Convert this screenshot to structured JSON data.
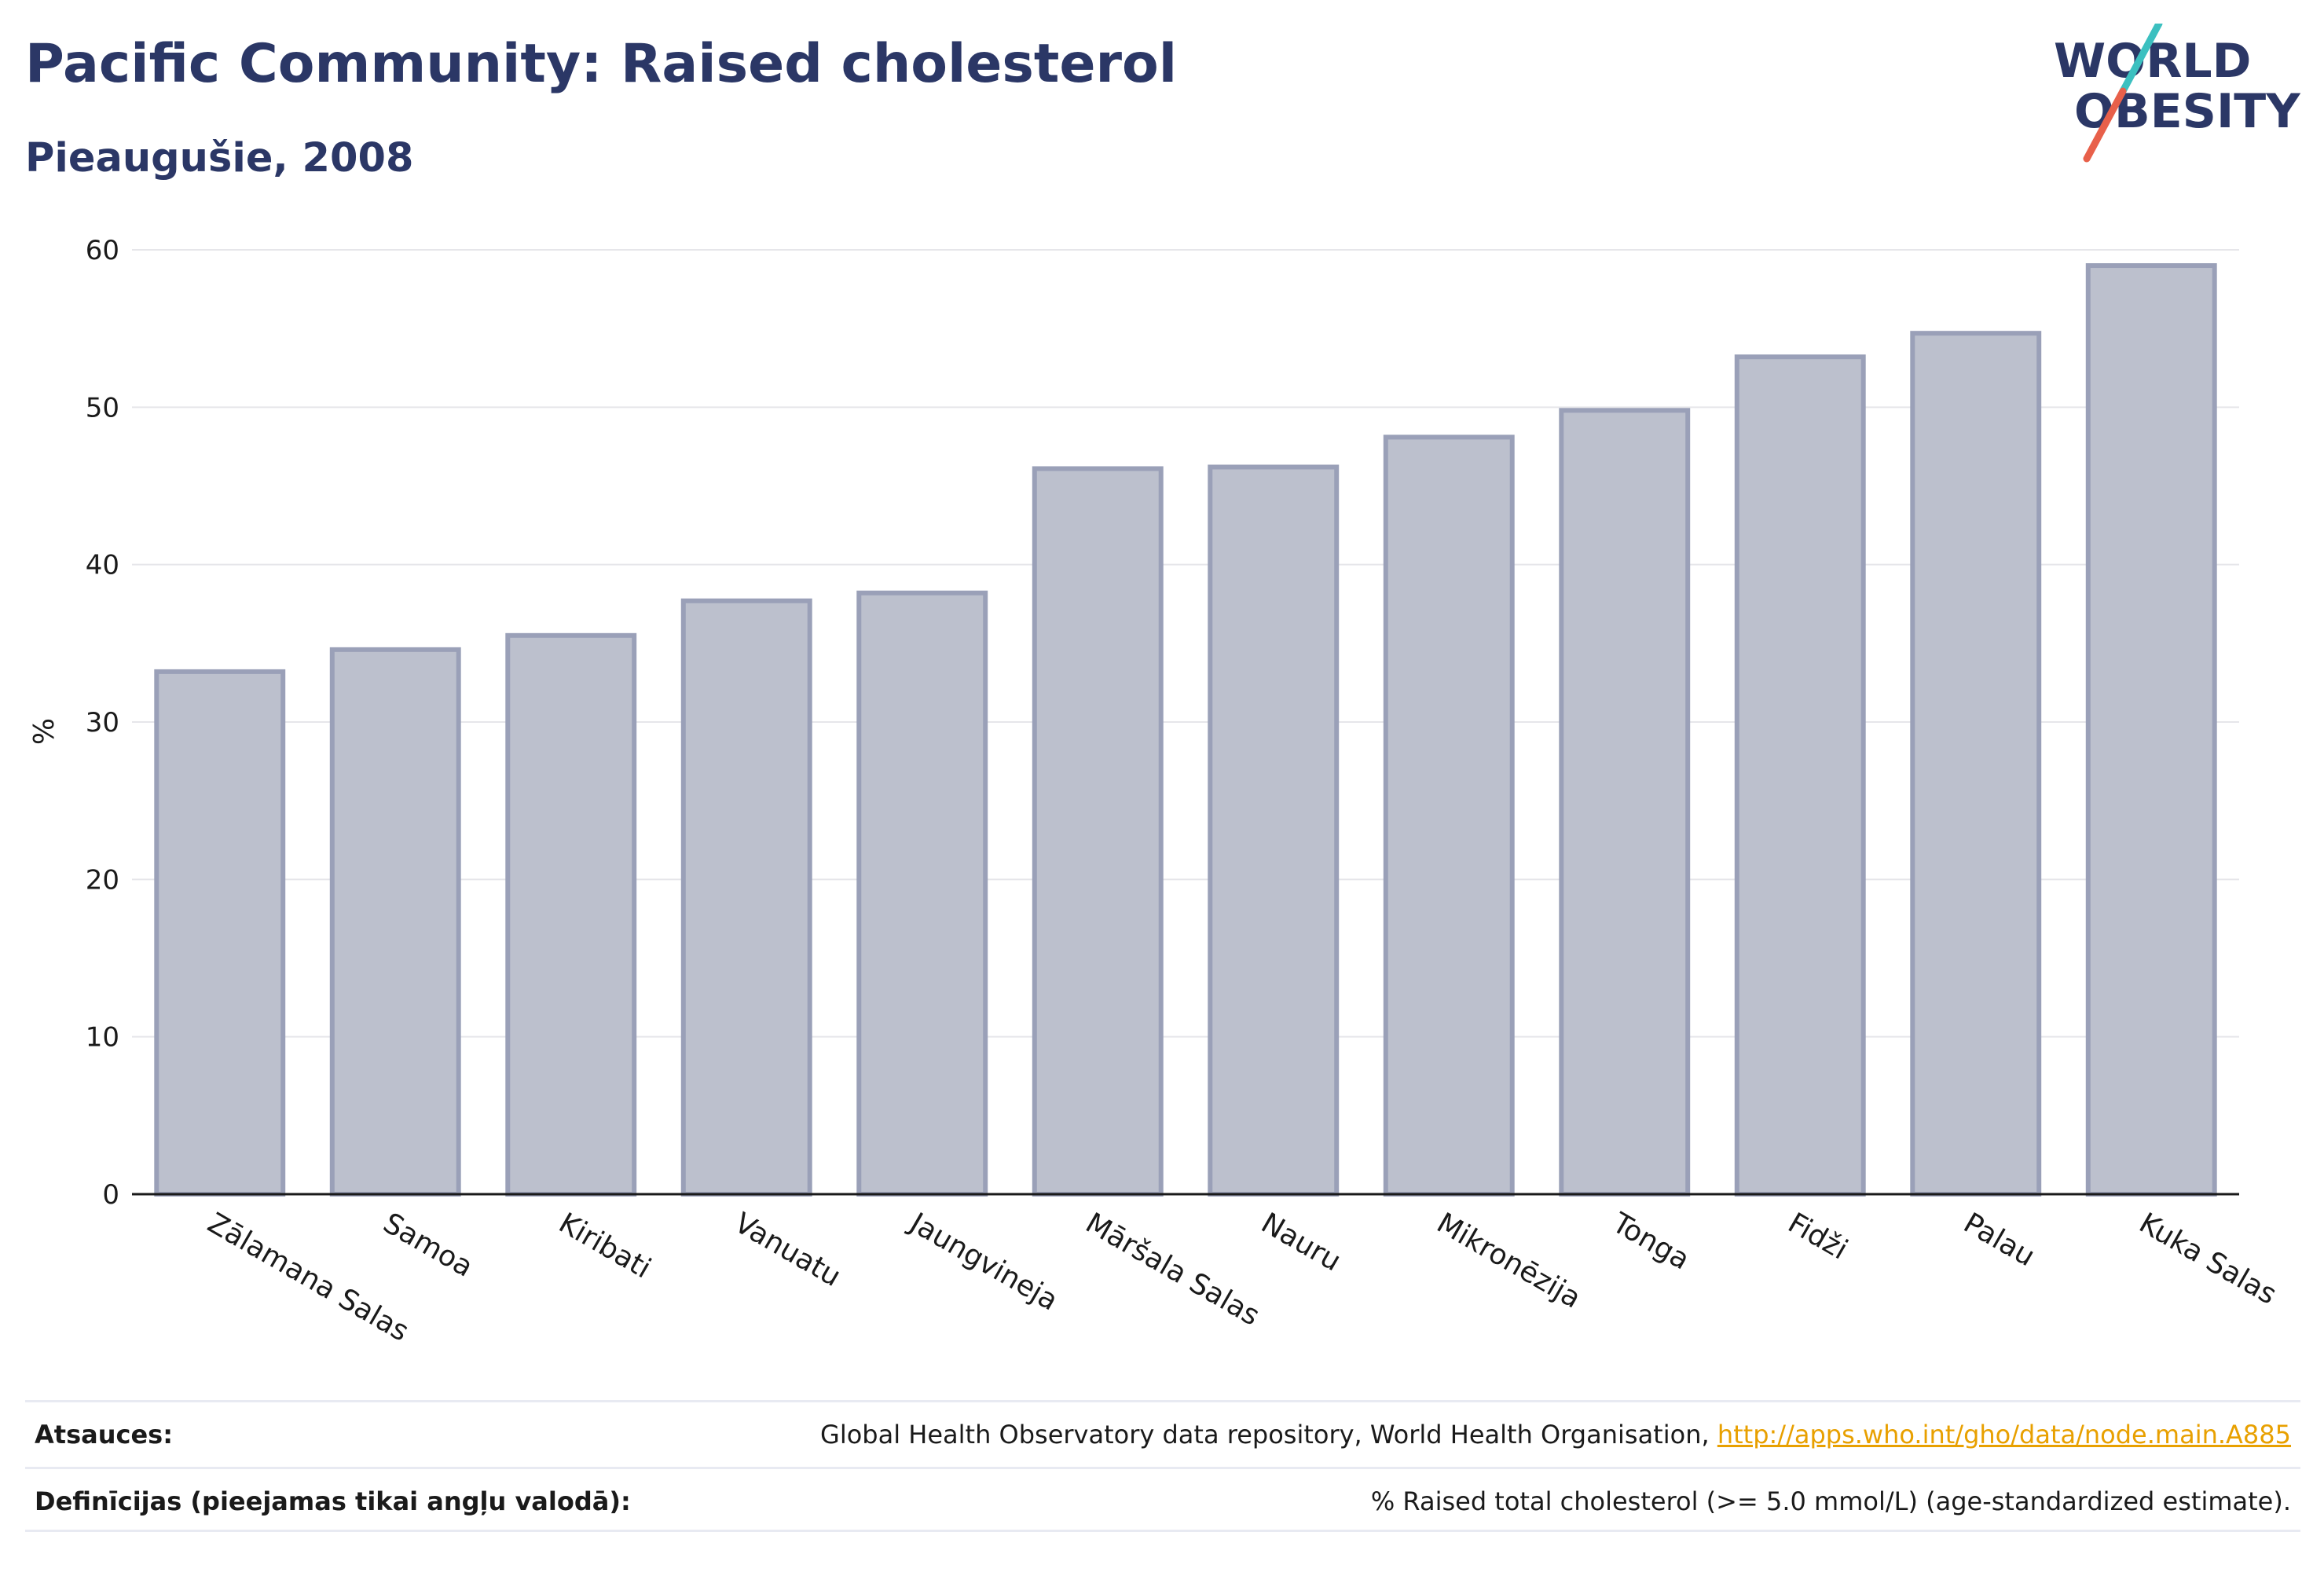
{
  "header": {
    "title": "Pacific Community: Raised cholesterol",
    "subtitle": "Pieaugušie, 2008"
  },
  "logo": {
    "line1": "WORLD",
    "line2": "OBESITY",
    "text_color": "#2b3766",
    "accent_teal": "#3cc0c0",
    "accent_red": "#e8604a"
  },
  "chart_data": {
    "type": "bar",
    "categories": [
      "Zālamana Salas",
      "Samoa",
      "Kiribati",
      "Vanuatu",
      "Jaungvineja",
      "Māršala Salas",
      "Nauru",
      "Mikronēzija",
      "Tonga",
      "Fidži",
      "Palau",
      "Kuka Salas"
    ],
    "values": [
      33.2,
      34.6,
      35.5,
      37.7,
      38.2,
      46.1,
      46.2,
      48.1,
      49.8,
      53.2,
      54.7,
      59.0
    ],
    "ylabel": "%",
    "xlabel": "",
    "ylim": [
      0,
      60
    ],
    "yticks": [
      0,
      10,
      20,
      30,
      40,
      50,
      60
    ],
    "grid": true,
    "bar_fill": "#bcc0cd",
    "bar_stroke": "#9aa0b8",
    "axis_color": "#1a1a1a",
    "grid_color": "#e6e6ea"
  },
  "footer": {
    "sources_label": "Atsauces:",
    "sources_text": "Global Health Observatory data repository, World Health Organisation, ",
    "sources_link": "http://apps.who.int/gho/data/node.main.A885",
    "definitions_label": "Definīcijas (pieejamas tikai angļu valodā):",
    "definitions_text": "% Raised total cholesterol (>= 5.0 mmol/L) (age-standardized estimate)."
  }
}
